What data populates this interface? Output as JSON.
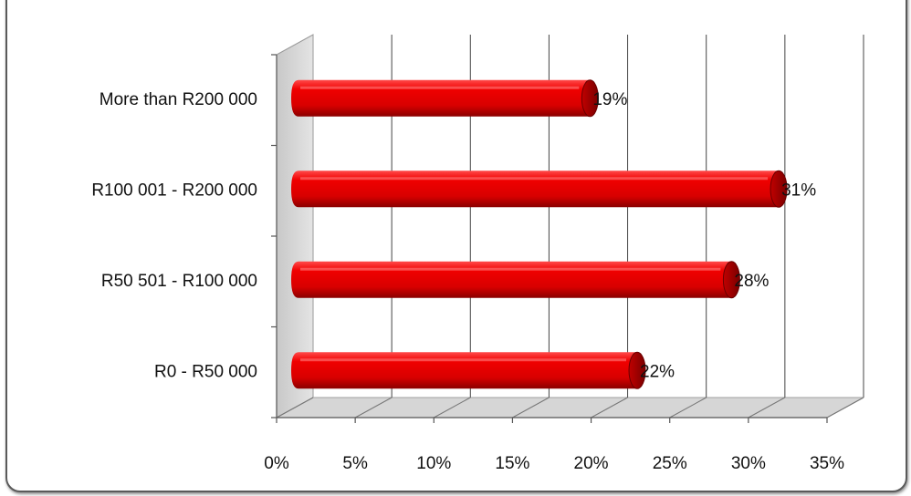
{
  "chart_data": {
    "type": "bar",
    "orientation": "horizontal",
    "style": "3d-cylinder",
    "categories": [
      "R0 - R50 000",
      "R50 501 - R100 000",
      "R100 001 - R200 000",
      "More than R200 000"
    ],
    "values": [
      22,
      28,
      31,
      19
    ],
    "data_labels": [
      "22%",
      "28%",
      "31%",
      "19%"
    ],
    "x_ticks": [
      "0%",
      "5%",
      "10%",
      "15%",
      "20%",
      "25%",
      "30%",
      "35%"
    ],
    "xlim": [
      0,
      35
    ],
    "unit": "%",
    "title": "",
    "xlabel": "",
    "ylabel": "",
    "grid": true,
    "legend": "none",
    "colors": {
      "bar": "#e60000",
      "bar_dark": "#8a0000",
      "bar_highlight": "#ff5a5a",
      "wall": "#d8d8d8",
      "gridline": "#555555"
    }
  }
}
